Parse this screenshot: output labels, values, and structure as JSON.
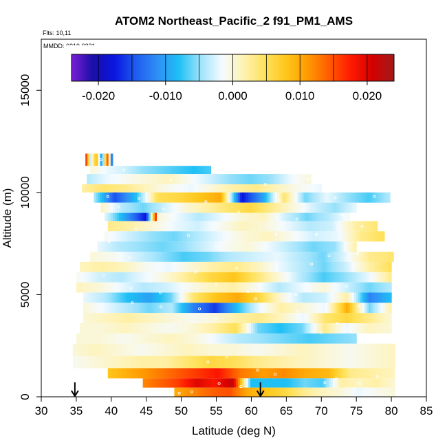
{
  "chart_data": {
    "type": "heatmap",
    "title": "ATOM2 Northeast_Pacific_2 f91_PM1_AMS",
    "flights_note": "Flts: 10,11",
    "dates_note": "MMDD: 0219,0221",
    "xlabel": "Latitude (deg N)",
    "ylabel": "Altitude (m)",
    "xlim": [
      30,
      85
    ],
    "ylim": [
      0,
      17500
    ],
    "x_ticks": [
      "30",
      "35",
      "40",
      "45",
      "50",
      "55",
      "60",
      "65",
      "70",
      "75",
      "80",
      "85"
    ],
    "x_tick_values": [
      30,
      35,
      40,
      45,
      50,
      55,
      60,
      65,
      70,
      75,
      80,
      85
    ],
    "y_ticks": [
      "0",
      "5000",
      "10000",
      "15000"
    ],
    "y_tick_values": [
      0,
      5000,
      10000,
      15000
    ],
    "colorbar": {
      "range": [
        -0.024,
        0.024
      ],
      "tick_labels": [
        "-0.020",
        "-0.010",
        "0.000",
        "0.010",
        "0.020"
      ],
      "tick_values": [
        -0.02,
        -0.01,
        0.0,
        0.01,
        0.02
      ],
      "palette": [
        "#7a1fd6",
        "#1a0ea8",
        "#0a16e0",
        "#1f5cf0",
        "#2f8ff5",
        "#1ec0f5",
        "#9ee3fb",
        "#f5fbff",
        "#fff2b0",
        "#ffe15a",
        "#ffc61a",
        "#ff9900",
        "#ff5a00",
        "#ff1a00",
        "#d40000",
        "#a31a1a"
      ]
    },
    "flight_markers_lat": [
      34.8,
      61.3
    ],
    "rows": [
      {
        "alt_lo": 11300,
        "alt_hi": 11900,
        "lat_start": 36.3,
        "lat_end": 40.2,
        "values": [
          0.02,
          -0.004,
          0.01,
          -0.012,
          0.015,
          -0.018
        ]
      },
      {
        "alt_lo": 10900,
        "alt_hi": 11300,
        "lat_start": 37.0,
        "lat_end": 54.2,
        "values": [
          0.0,
          -0.002,
          -0.003,
          -0.005,
          -0.006,
          -0.007,
          -0.008,
          -0.007
        ]
      },
      {
        "alt_lo": 10400,
        "alt_hi": 10900,
        "lat_start": 36.5,
        "lat_end": 68.5,
        "values": [
          -0.004,
          -0.002,
          -0.001,
          0.0,
          0.001,
          -0.001,
          -0.003,
          -0.005,
          -0.006,
          -0.005,
          -0.002,
          0.0
        ]
      },
      {
        "alt_lo": 10000,
        "alt_hi": 10400,
        "lat_start": 35.8,
        "lat_end": 70.0,
        "values": [
          0.002,
          0.004,
          0.003,
          0.001,
          -0.001,
          -0.002,
          0.0,
          0.002,
          0.003,
          0.001,
          -0.001,
          -0.002
        ]
      },
      {
        "alt_lo": 9500,
        "alt_hi": 10000,
        "lat_start": 37.5,
        "lat_end": 79.8,
        "values": [
          -0.004,
          -0.015,
          -0.008,
          0.005,
          0.006,
          0.008,
          0.01,
          -0.018,
          -0.01,
          0.004,
          -0.006,
          -0.002,
          -0.005,
          -0.007,
          -0.004
        ]
      },
      {
        "alt_lo": 9000,
        "alt_hi": 9500,
        "lat_start": 38.5,
        "lat_end": 75.0,
        "values": [
          0.001,
          -0.004,
          -0.006,
          -0.003,
          0.0,
          0.002,
          0.004,
          0.006,
          0.003,
          0.0,
          -0.003,
          -0.005,
          -0.002
        ]
      },
      {
        "alt_lo": 8600,
        "alt_hi": 9000,
        "lat_start": 39.0,
        "lat_end": 46.5,
        "values": [
          -0.002,
          -0.006,
          -0.01,
          -0.014,
          -0.018,
          0.02
        ]
      },
      {
        "alt_lo": 8600,
        "alt_hi": 9000,
        "lat_start": 46.5,
        "lat_end": 74.0,
        "values": [
          0.0,
          -0.002,
          -0.004,
          -0.002,
          0.0,
          0.001,
          -0.003,
          -0.006,
          -0.004,
          -0.001
        ]
      },
      {
        "alt_lo": 8100,
        "alt_hi": 8600,
        "lat_start": 39.5,
        "lat_end": 78.0,
        "values": [
          0.003,
          0.002,
          0.0,
          -0.002,
          -0.003,
          -0.001,
          0.001,
          0.0,
          -0.002,
          -0.004,
          -0.003,
          0.002,
          0.004
        ]
      },
      {
        "alt_lo": 7600,
        "alt_hi": 8100,
        "lat_start": 39.0,
        "lat_end": 79.0,
        "values": [
          -0.001,
          -0.003,
          -0.005,
          -0.006,
          -0.004,
          -0.002,
          0.0,
          0.001,
          -0.001,
          -0.003,
          -0.002,
          0.003,
          0.005
        ]
      },
      {
        "alt_lo": 7100,
        "alt_hi": 7600,
        "lat_start": 38.0,
        "lat_end": 75.0,
        "values": [
          -0.002,
          -0.004,
          -0.005,
          -0.006,
          -0.005,
          -0.003,
          -0.001,
          0.0,
          -0.002,
          -0.004,
          -0.006,
          -0.005,
          0.002
        ]
      },
      {
        "alt_lo": 6600,
        "alt_hi": 7100,
        "lat_start": 37.0,
        "lat_end": 80.3,
        "values": [
          0.0,
          -0.001,
          -0.003,
          -0.005,
          -0.007,
          -0.006,
          -0.004,
          -0.003,
          -0.002,
          -0.004,
          -0.006,
          -0.002,
          0.003,
          0.004
        ]
      },
      {
        "alt_lo": 6100,
        "alt_hi": 6600,
        "lat_start": 35.5,
        "lat_end": 80.0,
        "values": [
          0.001,
          0.002,
          0.001,
          -0.001,
          -0.002,
          0.0,
          0.002,
          0.003,
          0.001,
          -0.002,
          -0.004,
          -0.006,
          -0.003,
          0.002,
          0.005
        ]
      },
      {
        "alt_lo": 5600,
        "alt_hi": 6100,
        "lat_start": 35.0,
        "lat_end": 80.0,
        "values": [
          -0.001,
          -0.003,
          -0.004,
          -0.002,
          0.0,
          0.003,
          0.006,
          0.008,
          0.004,
          0.0,
          -0.004,
          -0.007,
          -0.005,
          -0.002,
          0.003
        ]
      },
      {
        "alt_lo": 5100,
        "alt_hi": 5600,
        "lat_start": 35.0,
        "lat_end": 80.0,
        "values": [
          0.001,
          0.0,
          -0.002,
          -0.004,
          -0.003,
          -0.001,
          0.001,
          0.002,
          -0.001,
          -0.004,
          -0.002,
          0.0,
          -0.003,
          -0.006,
          -0.004
        ]
      },
      {
        "alt_lo": 4600,
        "alt_hi": 5100,
        "lat_start": 36.0,
        "lat_end": 80.0,
        "values": [
          -0.002,
          -0.004,
          -0.008,
          -0.01,
          -0.006,
          0.004,
          0.008,
          0.01,
          0.006,
          0.0,
          -0.004,
          -0.003,
          0.002,
          -0.012,
          -0.008
        ]
      },
      {
        "alt_lo": 4100,
        "alt_hi": 4600,
        "lat_start": 36.0,
        "lat_end": 80.0,
        "values": [
          0.0,
          -0.002,
          -0.004,
          -0.006,
          -0.004,
          -0.012,
          -0.016,
          -0.008,
          -0.002,
          0.002,
          0.0,
          -0.002,
          0.01,
          -0.006,
          0.002
        ]
      },
      {
        "alt_lo": 3600,
        "alt_hi": 4100,
        "lat_start": 36.0,
        "lat_end": 80.0,
        "values": [
          0.0,
          0.001,
          0.002,
          0.001,
          0.0,
          -0.001,
          0.0,
          0.002,
          0.003,
          0.001,
          -0.002,
          0.004,
          0.006,
          0.003,
          0.0
        ]
      },
      {
        "alt_lo": 3100,
        "alt_hi": 3600,
        "lat_start": 35.5,
        "lat_end": 80.0,
        "values": [
          0.0,
          0.0,
          0.001,
          0.0,
          -0.001,
          0.0,
          0.002,
          0.005,
          -0.006,
          -0.008,
          -0.006,
          0.003,
          -0.002,
          0.001,
          0.0
        ]
      },
      {
        "alt_lo": 2600,
        "alt_hi": 3100,
        "lat_start": 35.0,
        "lat_end": 75.0,
        "values": [
          0.0,
          0.0,
          -0.001,
          0.0,
          0.001,
          0.0,
          -0.002,
          -0.004,
          -0.005,
          -0.006,
          -0.007,
          -0.006,
          -0.005
        ]
      },
      {
        "alt_lo": 2000,
        "alt_hi": 2600,
        "lat_start": 34.5,
        "lat_end": 80.5,
        "values": [
          0.0,
          0.001,
          0.0,
          -0.001,
          0.0,
          0.001,
          0.0,
          0.0,
          -0.001,
          0.0,
          0.001,
          0.0,
          -0.001,
          0.0,
          0.001
        ]
      },
      {
        "alt_lo": 1400,
        "alt_hi": 2000,
        "lat_start": 34.5,
        "lat_end": 80.5,
        "values": [
          -0.001,
          0.0,
          0.001,
          0.002,
          0.002,
          0.004,
          0.006,
          0.005,
          0.003,
          0.002,
          0.001,
          0.0,
          -0.001,
          0.0,
          0.001
        ]
      },
      {
        "alt_lo": 900,
        "alt_hi": 1400,
        "lat_start": 39.5,
        "lat_end": 80.5,
        "values": [
          0.008,
          0.01,
          0.012,
          0.014,
          0.016,
          0.018,
          0.013,
          0.011,
          0.012,
          0.01,
          0.009,
          0.003,
          0.002,
          0.001
        ]
      },
      {
        "alt_lo": 450,
        "alt_hi": 900,
        "lat_start": 44.5,
        "lat_end": 80.5,
        "values": [
          0.012,
          0.014,
          0.016,
          0.02,
          0.018,
          0.022,
          -0.008,
          -0.008,
          -0.008,
          -0.006,
          -0.007,
          0.002,
          0.001,
          0.002,
          0.0
        ]
      },
      {
        "alt_lo": 0,
        "alt_hi": 450,
        "lat_start": 49.0,
        "lat_end": 80.5,
        "values": [
          0.01,
          0.012,
          0.014,
          0.015,
          0.01,
          0.008,
          0.006,
          0.003,
          0.001,
          0.0,
          -0.002,
          -0.001,
          0.0
        ]
      }
    ],
    "sample_points": [
      [
        38.5,
        11600
      ],
      [
        41.8,
        11100
      ],
      [
        48.5,
        10600
      ],
      [
        62.0,
        10400
      ],
      [
        68.2,
        10650
      ],
      [
        39.5,
        9800
      ],
      [
        44.0,
        9700
      ],
      [
        53.5,
        9550
      ],
      [
        64.0,
        9600
      ],
      [
        72.0,
        9750
      ],
      [
        77.6,
        9800
      ],
      [
        41.0,
        9300
      ],
      [
        47.5,
        9200
      ],
      [
        58.2,
        9050
      ],
      [
        66.5,
        8700
      ],
      [
        73.0,
        8900
      ],
      [
        75.8,
        8350
      ],
      [
        43.5,
        8200
      ],
      [
        51.0,
        7900
      ],
      [
        63.5,
        7950
      ],
      [
        69.3,
        7950
      ],
      [
        39.7,
        7600
      ],
      [
        42.6,
        6800
      ],
      [
        55.0,
        7350
      ],
      [
        71.1,
        6900
      ],
      [
        75.2,
        7000
      ],
      [
        38.9,
        5950
      ],
      [
        52.0,
        6100
      ],
      [
        57.9,
        6300
      ],
      [
        68.6,
        6500
      ],
      [
        42.8,
        5300
      ],
      [
        47.0,
        5100
      ],
      [
        55.0,
        5500
      ],
      [
        59.5,
        5150
      ],
      [
        66.4,
        5000
      ],
      [
        73.6,
        5400
      ],
      [
        43.0,
        4600
      ],
      [
        47.1,
        4400
      ],
      [
        52.6,
        4300
      ],
      [
        60.6,
        4800
      ],
      [
        66.6,
        4200
      ],
      [
        75.3,
        4450
      ],
      [
        55.0,
        3850
      ],
      [
        70.0,
        3150
      ],
      [
        72.3,
        3600
      ],
      [
        73.8,
        3300
      ],
      [
        53.8,
        1700
      ],
      [
        56.5,
        1950
      ],
      [
        60.9,
        1300
      ],
      [
        63.4,
        1100
      ],
      [
        72.1,
        900
      ],
      [
        78.0,
        1000
      ],
      [
        55.4,
        650
      ],
      [
        58.5,
        500
      ],
      [
        70.5,
        700
      ],
      [
        75.5,
        650
      ],
      [
        49.7,
        180
      ],
      [
        51.5,
        250
      ]
    ]
  }
}
